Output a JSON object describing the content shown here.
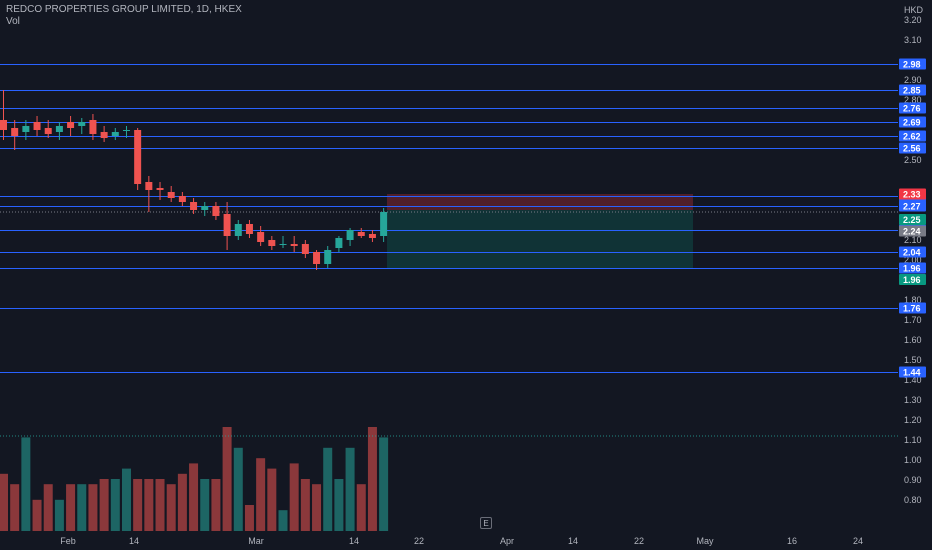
{
  "header": {
    "symbol_title": "REDCO PROPERTIES GROUP LIMITED, 1D, HKEX",
    "volume_label": "Vol",
    "currency": "HKD"
  },
  "colors": {
    "background": "#131722",
    "up": "#26a69a",
    "down": "#ef5350",
    "hline": "#2962ff",
    "badge_blue": "#2962ff",
    "badge_red": "#f23645",
    "badge_gray": "#787b86",
    "badge_green": "#089981"
  },
  "price_axis": {
    "ticks": [
      "3.20",
      "3.10",
      "2.90",
      "2.80",
      "2.70",
      "2.50",
      "2.10",
      "2.00",
      "1.80",
      "1.70",
      "1.60",
      "1.50",
      "1.40",
      "1.30",
      "1.20",
      "1.10",
      "1.00",
      "0.90",
      "0.80"
    ]
  },
  "time_axis": {
    "labels": [
      "Feb",
      "14",
      "Mar",
      "14",
      "22",
      "Apr",
      "14",
      "22",
      "May",
      "16",
      "24"
    ]
  },
  "horizontal_levels": [
    "2.98",
    "2.85",
    "2.76",
    "2.69",
    "2.62",
    "2.56",
    "2.32",
    "2.27",
    "2.15",
    "2.04",
    "1.96",
    "1.76",
    "1.44"
  ],
  "price_badges": [
    {
      "label": "2.33",
      "kind": "red"
    },
    {
      "label": "2.25",
      "kind": "green"
    },
    {
      "label": "2.24",
      "kind": "gray"
    },
    {
      "label": "1.96",
      "kind": "green"
    }
  ],
  "position_tool": {
    "entry": 2.25,
    "stop": 2.33,
    "target": 1.96
  },
  "event_marker": "E",
  "chart_data": {
    "type": "candlestick",
    "title": "REDCO PROPERTIES GROUP LIMITED, 1D, HKEX",
    "ylim": [
      0.7,
      3.28
    ],
    "candles": [
      {
        "o": 2.7,
        "h": 2.85,
        "l": 2.6,
        "c": 2.65
      },
      {
        "o": 2.66,
        "h": 2.7,
        "l": 2.55,
        "c": 2.62
      },
      {
        "o": 2.64,
        "h": 2.7,
        "l": 2.6,
        "c": 2.67
      },
      {
        "o": 2.69,
        "h": 2.72,
        "l": 2.62,
        "c": 2.65
      },
      {
        "o": 2.66,
        "h": 2.7,
        "l": 2.61,
        "c": 2.63
      },
      {
        "o": 2.64,
        "h": 2.69,
        "l": 2.6,
        "c": 2.67
      },
      {
        "o": 2.69,
        "h": 2.72,
        "l": 2.62,
        "c": 2.66
      },
      {
        "o": 2.67,
        "h": 2.71,
        "l": 2.63,
        "c": 2.69
      },
      {
        "o": 2.7,
        "h": 2.73,
        "l": 2.6,
        "c": 2.63
      },
      {
        "o": 2.64,
        "h": 2.67,
        "l": 2.59,
        "c": 2.61
      },
      {
        "o": 2.62,
        "h": 2.66,
        "l": 2.6,
        "c": 2.64
      },
      {
        "o": 2.65,
        "h": 2.67,
        "l": 2.61,
        "c": 2.65
      },
      {
        "o": 2.65,
        "h": 2.66,
        "l": 2.35,
        "c": 2.38
      },
      {
        "o": 2.39,
        "h": 2.42,
        "l": 2.24,
        "c": 2.35
      },
      {
        "o": 2.36,
        "h": 2.39,
        "l": 2.3,
        "c": 2.35
      },
      {
        "o": 2.34,
        "h": 2.37,
        "l": 2.29,
        "c": 2.31
      },
      {
        "o": 2.32,
        "h": 2.34,
        "l": 2.27,
        "c": 2.29
      },
      {
        "o": 2.29,
        "h": 2.31,
        "l": 2.23,
        "c": 2.25
      },
      {
        "o": 2.25,
        "h": 2.29,
        "l": 2.22,
        "c": 2.27
      },
      {
        "o": 2.27,
        "h": 2.29,
        "l": 2.2,
        "c": 2.22
      },
      {
        "o": 2.23,
        "h": 2.29,
        "l": 2.05,
        "c": 2.12
      },
      {
        "o": 2.12,
        "h": 2.2,
        "l": 2.1,
        "c": 2.18
      },
      {
        "o": 2.18,
        "h": 2.2,
        "l": 2.11,
        "c": 2.13
      },
      {
        "o": 2.14,
        "h": 2.17,
        "l": 2.07,
        "c": 2.09
      },
      {
        "o": 2.1,
        "h": 2.12,
        "l": 2.05,
        "c": 2.07
      },
      {
        "o": 2.08,
        "h": 2.12,
        "l": 2.06,
        "c": 2.08
      },
      {
        "o": 2.08,
        "h": 2.12,
        "l": 2.04,
        "c": 2.07
      },
      {
        "o": 2.08,
        "h": 2.1,
        "l": 2.01,
        "c": 2.03
      },
      {
        "o": 2.04,
        "h": 2.05,
        "l": 1.95,
        "c": 1.98
      },
      {
        "o": 1.98,
        "h": 2.07,
        "l": 1.96,
        "c": 2.05
      },
      {
        "o": 2.06,
        "h": 2.12,
        "l": 2.04,
        "c": 2.11
      },
      {
        "o": 2.1,
        "h": 2.16,
        "l": 2.07,
        "c": 2.15
      },
      {
        "o": 2.14,
        "h": 2.16,
        "l": 2.11,
        "c": 2.12
      },
      {
        "o": 2.13,
        "h": 2.15,
        "l": 2.09,
        "c": 2.11
      },
      {
        "o": 2.12,
        "h": 2.26,
        "l": 2.09,
        "c": 2.24
      }
    ],
    "volume": [
      0.55,
      0.45,
      0.9,
      0.3,
      0.45,
      0.3,
      0.45,
      0.45,
      0.45,
      0.5,
      0.5,
      0.6,
      0.5,
      0.5,
      0.5,
      0.45,
      0.55,
      0.65,
      0.5,
      0.5,
      1.0,
      0.8,
      0.25,
      0.7,
      0.6,
      0.2,
      0.65,
      0.5,
      0.45,
      0.8,
      0.5,
      0.8,
      0.45,
      1.0,
      0.9
    ]
  }
}
